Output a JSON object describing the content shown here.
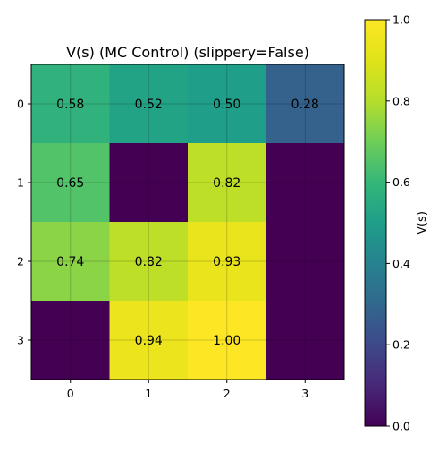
{
  "chart_data": {
    "type": "heatmap",
    "title": "V(s) (MC Control) (slippery=False)",
    "x_ticks": [
      "0",
      "1",
      "2",
      "3"
    ],
    "y_ticks": [
      "0",
      "1",
      "2",
      "3"
    ],
    "values": [
      [
        0.58,
        0.52,
        0.5,
        0.28
      ],
      [
        0.65,
        0.0,
        0.82,
        0.0
      ],
      [
        0.74,
        0.82,
        0.93,
        0.0
      ],
      [
        0.0,
        0.94,
        1.0,
        0.0
      ]
    ],
    "cell_labels": [
      [
        "0.58",
        "0.52",
        "0.50",
        "0.28"
      ],
      [
        "0.65",
        "",
        "0.82",
        ""
      ],
      [
        "0.74",
        "0.82",
        "0.93",
        ""
      ],
      [
        "",
        "0.94",
        "1.00",
        ""
      ]
    ],
    "colormap": "viridis",
    "vmin": 0.0,
    "vmax": 1.0,
    "grid": true,
    "colorbar": {
      "label": "V(s)",
      "ticks": [
        "0.0",
        "0.2",
        "0.4",
        "0.6",
        "0.8",
        "1.0"
      ],
      "tick_values": [
        0.0,
        0.2,
        0.4,
        0.6,
        0.8,
        1.0
      ],
      "placement": "right"
    }
  }
}
